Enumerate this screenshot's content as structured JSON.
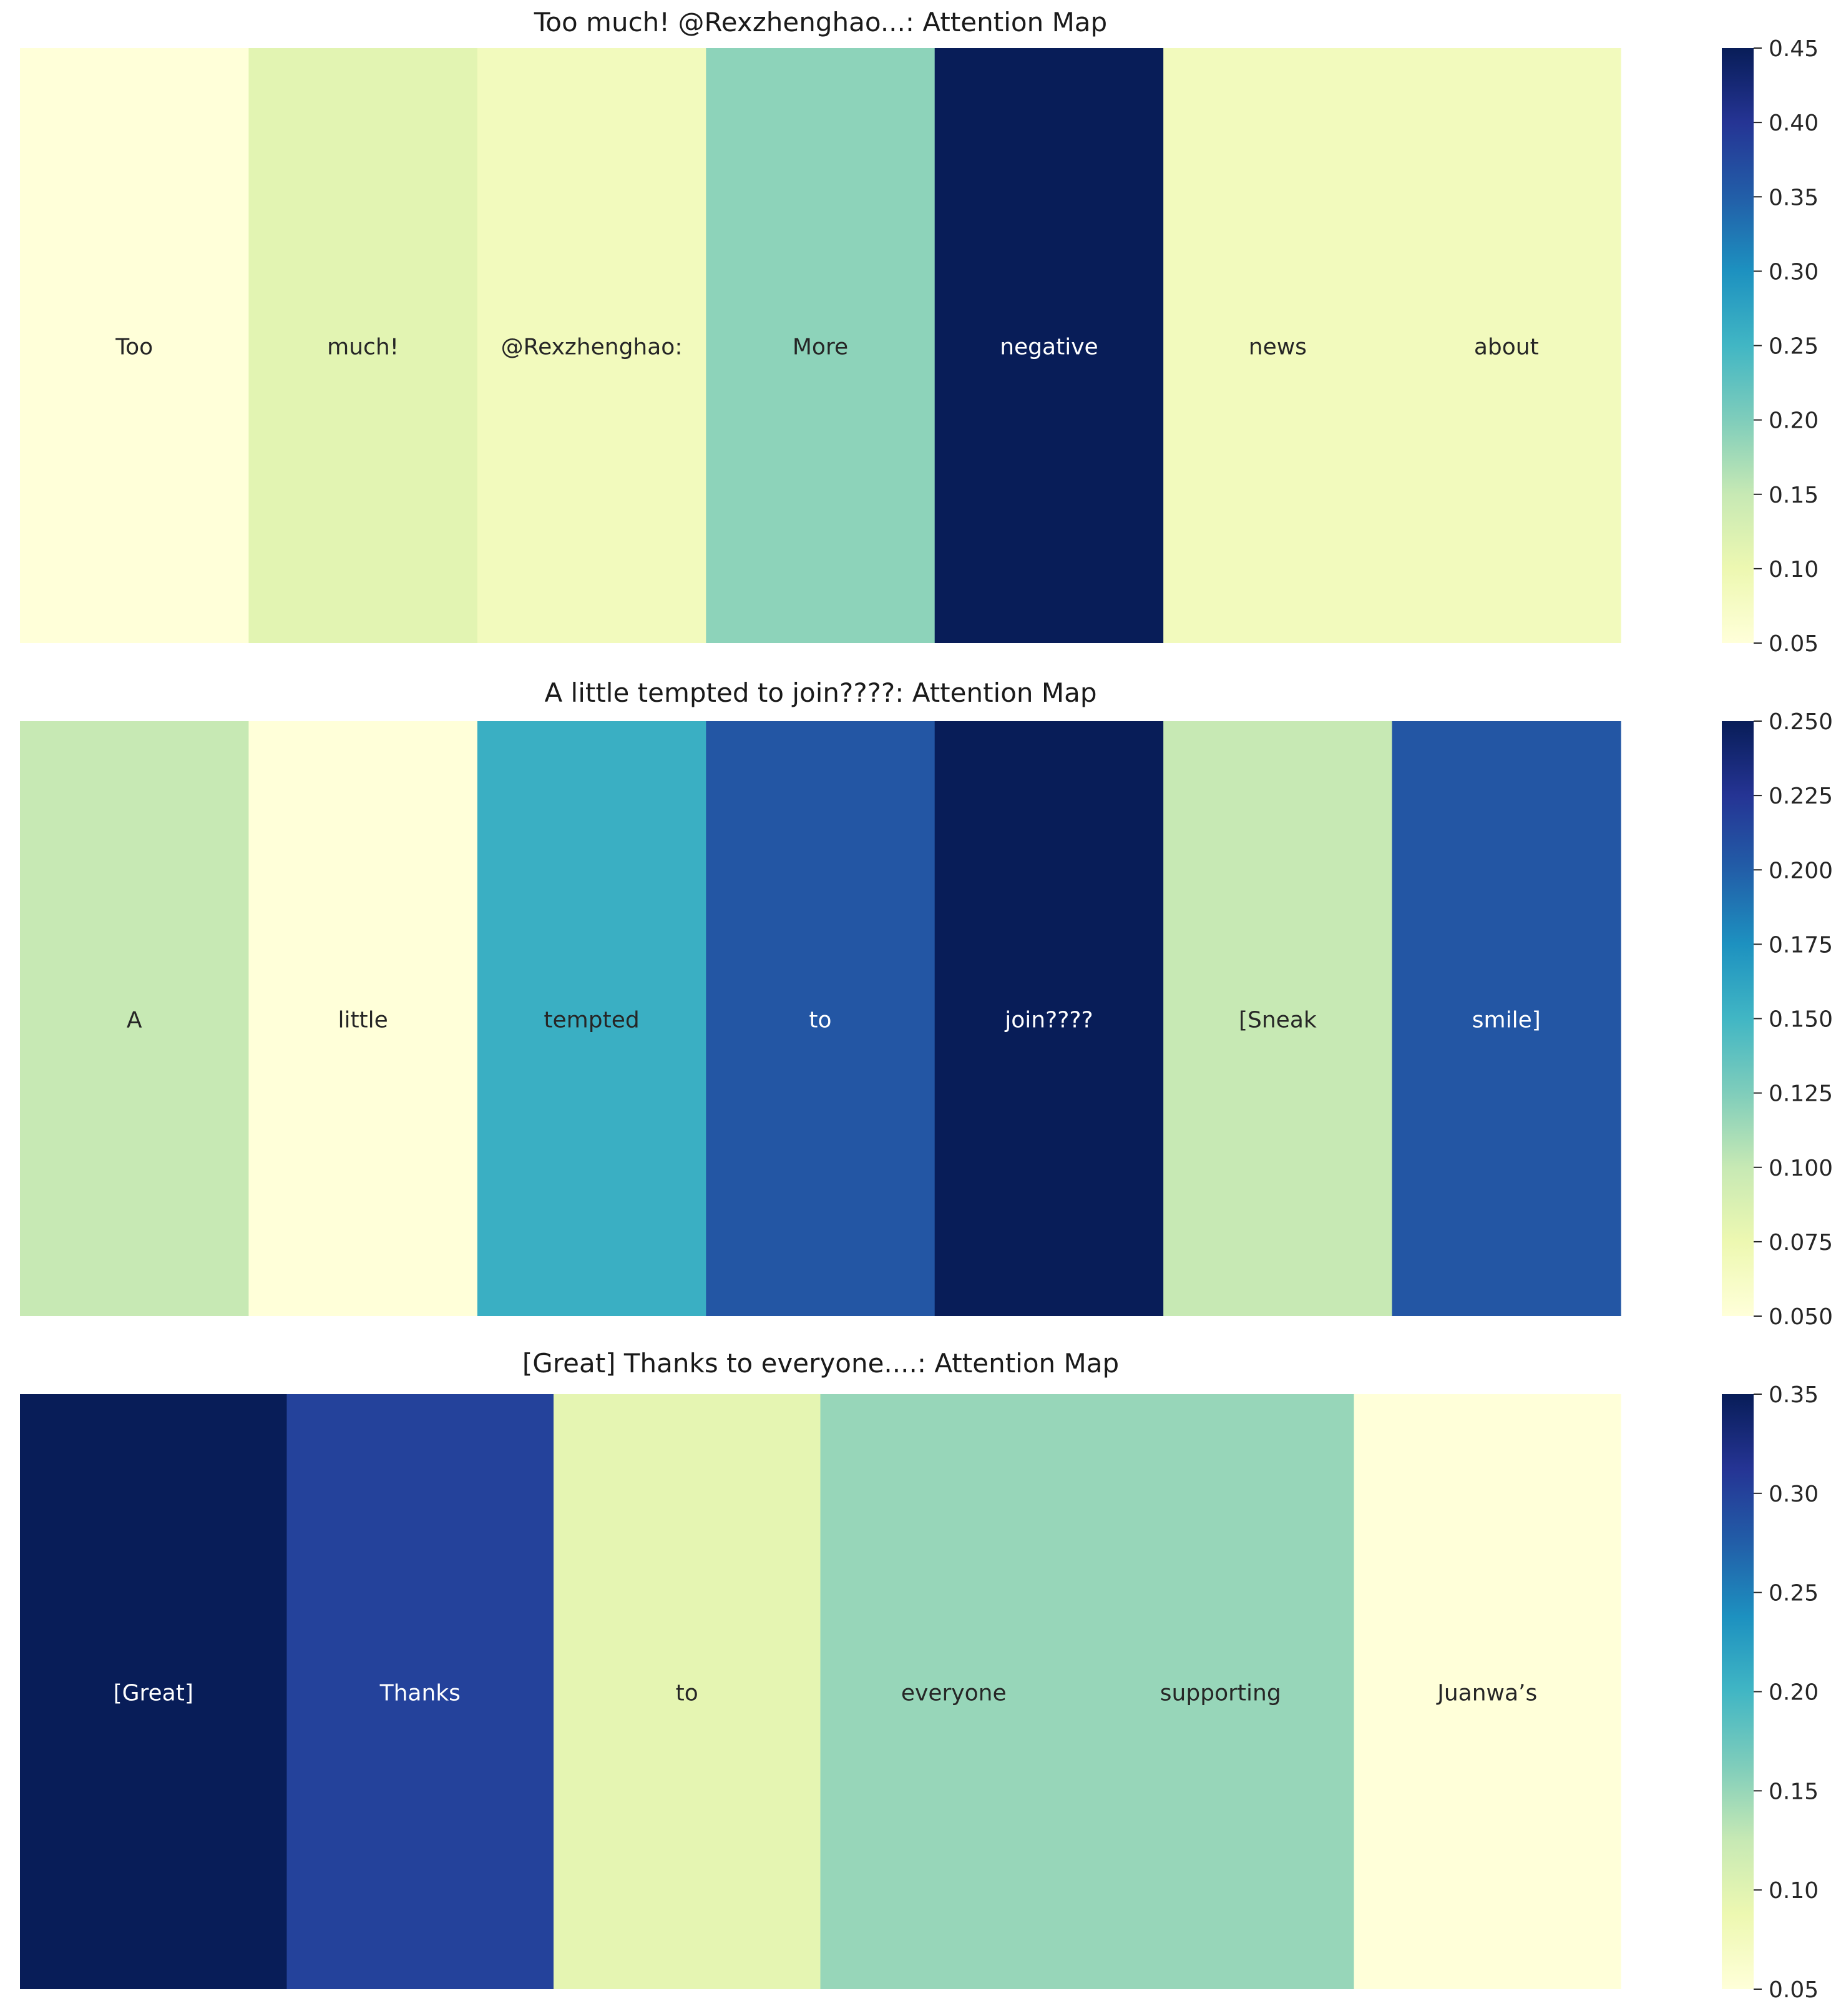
{
  "chart_data": [
    {
      "type": "heatmap",
      "title": "Too much! @Rexzhenghao...: Attention Map",
      "xlabel": "",
      "ylabel": "",
      "tokens": [
        "Too",
        "much!",
        "@Rexzhenghao:",
        "More",
        "negative",
        "news",
        "about"
      ],
      "values": [
        0.05,
        0.115,
        0.085,
        0.19,
        0.45,
        0.085,
        0.085
      ],
      "colorbar": {
        "range": [
          0.05,
          0.45
        ],
        "ticks": [
          0.05,
          0.1,
          0.15,
          0.2,
          0.25,
          0.3,
          0.35,
          0.4,
          0.45
        ],
        "tick_labels": [
          "0.05",
          "0.10",
          "0.15",
          "0.20",
          "0.25",
          "0.30",
          "0.35",
          "0.40",
          "0.45"
        ]
      },
      "colormap": "YlGnBu"
    },
    {
      "type": "heatmap",
      "title": "A little tempted to join????: Attention Map",
      "xlabel": "",
      "ylabel": "",
      "tokens": [
        "A",
        "little",
        "tempted",
        "to",
        "join????",
        "[Sneak",
        "smile]"
      ],
      "values": [
        0.1,
        0.05,
        0.155,
        0.205,
        0.25,
        0.1,
        0.205
      ],
      "colorbar": {
        "range": [
          0.05,
          0.25
        ],
        "ticks": [
          0.05,
          0.075,
          0.1,
          0.125,
          0.15,
          0.175,
          0.2,
          0.225,
          0.25
        ],
        "tick_labels": [
          "0.050",
          "0.075",
          "0.100",
          "0.125",
          "0.150",
          "0.175",
          "0.200",
          "0.225",
          "0.250"
        ]
      },
      "colormap": "YlGnBu"
    },
    {
      "type": "heatmap",
      "title": "[Great] Thanks to everyone....: Attention Map",
      "xlabel": "",
      "ylabel": "",
      "tokens": [
        "[Great]",
        "Thanks",
        "to",
        "everyone",
        "supporting",
        "Juanwa’s"
      ],
      "values": [
        0.35,
        0.3,
        0.095,
        0.15,
        0.15,
        0.05
      ],
      "colorbar": {
        "range": [
          0.05,
          0.35
        ],
        "ticks": [
          0.05,
          0.1,
          0.15,
          0.2,
          0.25,
          0.3,
          0.35
        ],
        "tick_labels": [
          "0.05",
          "0.10",
          "0.15",
          "0.20",
          "0.25",
          "0.30",
          "0.35"
        ]
      },
      "colormap": "YlGnBu"
    }
  ],
  "colormap_stops": [
    "#ffffd9",
    "#edf8b1",
    "#c7e9b4",
    "#7fcdbb",
    "#41b6c4",
    "#1d91c0",
    "#225ea8",
    "#253494",
    "#081d58"
  ]
}
